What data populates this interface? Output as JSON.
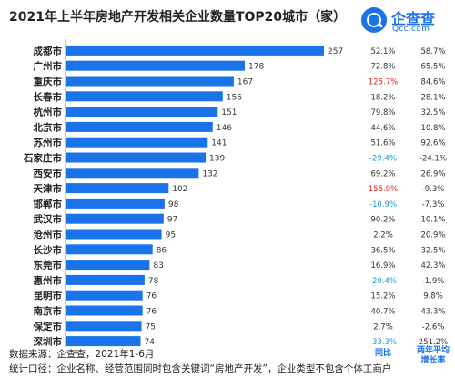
{
  "title": "2021年上半年房地产开发相关企业数量TOP20城市（家）",
  "logo": {
    "name": "企查查",
    "sub": "Qcc.com"
  },
  "footer": {
    "source": "数据来源：企查查，2021年1-6月",
    "criteria": "统计口径：企业名称、经营范围同时包含关键词“房地产开发”，企业类型不包含个体工商户"
  },
  "columns": {
    "yoy": "同比",
    "avg": "两年平均增长率"
  },
  "colors": {
    "bar": "#1a73e8",
    "negative": "#1a9ad6",
    "highlight": "#e02020",
    "text": "#333333"
  },
  "chart_data": {
    "type": "bar",
    "orientation": "horizontal",
    "title": "2021年上半年房地产开发相关企业数量TOP20城市（家）",
    "categories": [
      "成都市",
      "广州市",
      "重庆市",
      "长春市",
      "杭州市",
      "北京市",
      "苏州市",
      "石家庄市",
      "西安市",
      "天津市",
      "邯郸市",
      "武汉市",
      "沧州市",
      "长沙市",
      "东莞市",
      "惠州市",
      "昆明市",
      "南京市",
      "保定市",
      "深圳市"
    ],
    "values": [
      257,
      178,
      167,
      156,
      151,
      146,
      141,
      139,
      132,
      102,
      98,
      97,
      95,
      86,
      83,
      78,
      76,
      76,
      75,
      74
    ],
    "xlim": [
      0,
      270
    ],
    "yoy": [
      "52.1%",
      "72.8%",
      "125.7%",
      "18.2%",
      "79.8%",
      "44.6%",
      "51.6%",
      "-29.4%",
      "69.2%",
      "155.0%",
      "-10.9%",
      "90.2%",
      "2.2%",
      "36.5%",
      "16.9%",
      "-20.4%",
      "15.2%",
      "40.7%",
      "2.7%",
      "-33.3%"
    ],
    "two_year_avg": [
      "58.7%",
      "65.5%",
      "84.6%",
      "28.1%",
      "32.5%",
      "10.8%",
      "92.6%",
      "-24.1%",
      "26.9%",
      "-9.3%",
      "-7.3%",
      "10.1%",
      "20.9%",
      "32.5%",
      "42.3%",
      "-1.9%",
      "9.8%",
      "43.3%",
      "-2.6%",
      "251.2%"
    ],
    "highlighted_yoy": [
      2,
      9
    ]
  }
}
